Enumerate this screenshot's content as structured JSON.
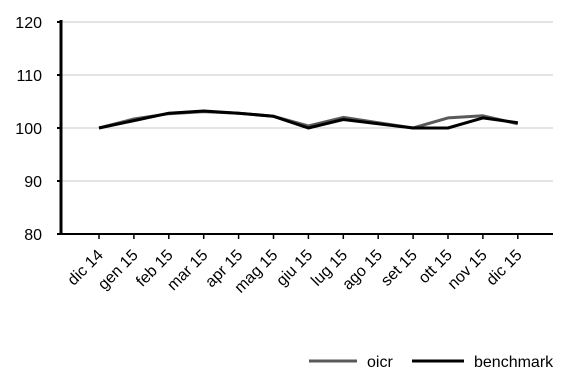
{
  "chart_data": {
    "type": "line",
    "title": "",
    "xlabel": "",
    "ylabel": "",
    "categories": [
      "dic 14",
      "gen 15",
      "feb 15",
      "mar 15",
      "apr 15",
      "mag 15",
      "giu 15",
      "lug 15",
      "ago 15",
      "set 15",
      "ott 15",
      "nov 15",
      "dic 15"
    ],
    "ylim": [
      80,
      120
    ],
    "yticks": [
      80,
      90,
      100,
      110,
      120
    ],
    "grid": true,
    "legend_position": "bottom-right",
    "series": [
      {
        "name": "oicr",
        "color": "#5a5a5a",
        "values": [
          100,
          101.7,
          102.7,
          103.1,
          102.8,
          102.2,
          100.4,
          102.0,
          101.0,
          100.0,
          101.9,
          102.3,
          100.8
        ]
      },
      {
        "name": "benchmark",
        "color": "#000000",
        "values": [
          100,
          101.4,
          102.8,
          103.2,
          102.8,
          102.2,
          100.0,
          101.6,
          100.8,
          100.0,
          100.0,
          101.9,
          101.0
        ]
      }
    ]
  }
}
